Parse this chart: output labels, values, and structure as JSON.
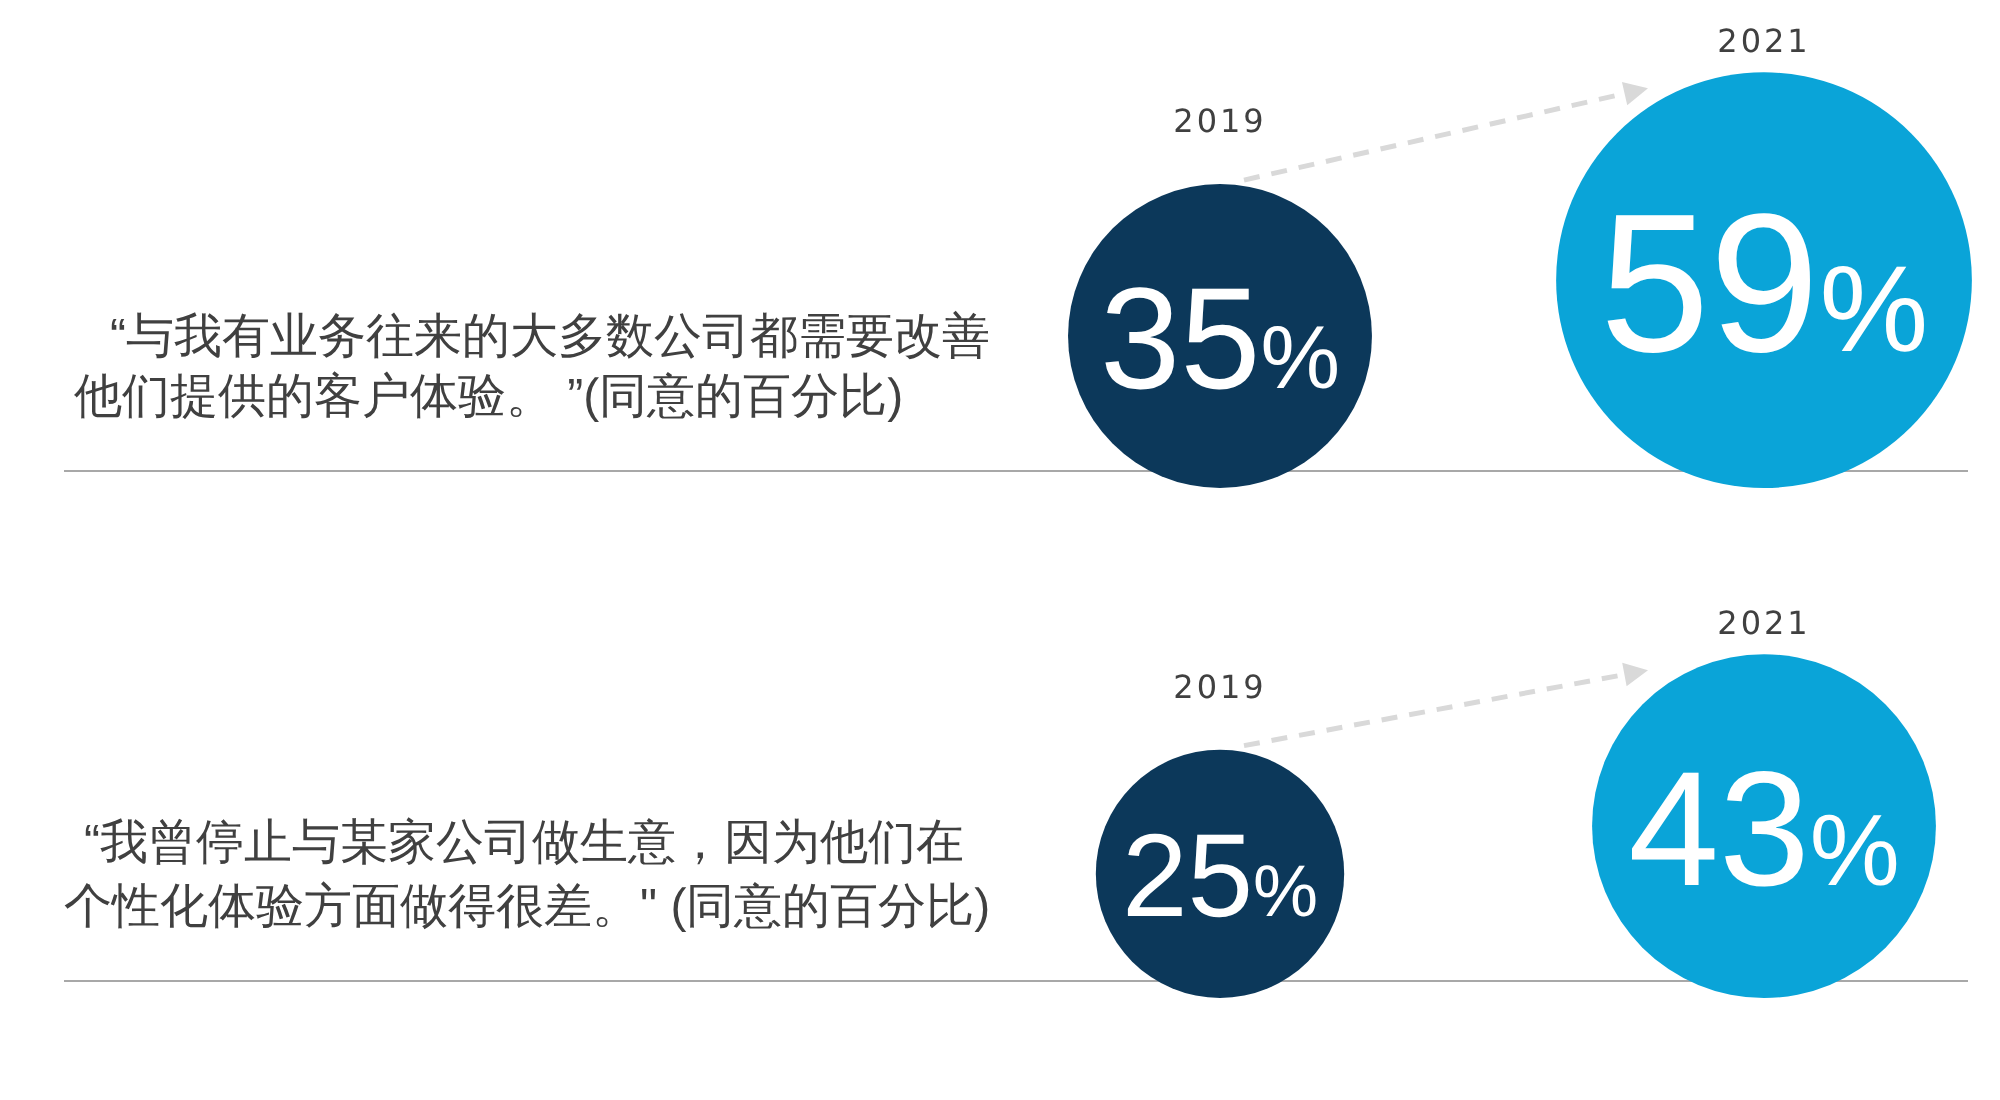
{
  "chart_data": [
    {
      "type": "other",
      "title": "“与我有业务往来的大多数公司都需要改善他们提供的客户体验。 ”(同意的百分比)",
      "categories": [
        "2019",
        "2021"
      ],
      "values": [
        35,
        59
      ],
      "value_labels": [
        "35%",
        "59%"
      ],
      "colors": [
        "#0c385a",
        "#0aa4d8"
      ]
    },
    {
      "type": "other",
      "title": "“我曾停止与某家公司做生意，因为他们在个性化体验方面做得很差。\" (同意的百分比)",
      "categories": [
        "2019",
        "2021"
      ],
      "values": [
        25,
        43
      ],
      "value_labels": [
        "25%",
        "43%"
      ],
      "colors": [
        "#0c385a",
        "#0aa4d8"
      ]
    }
  ]
}
